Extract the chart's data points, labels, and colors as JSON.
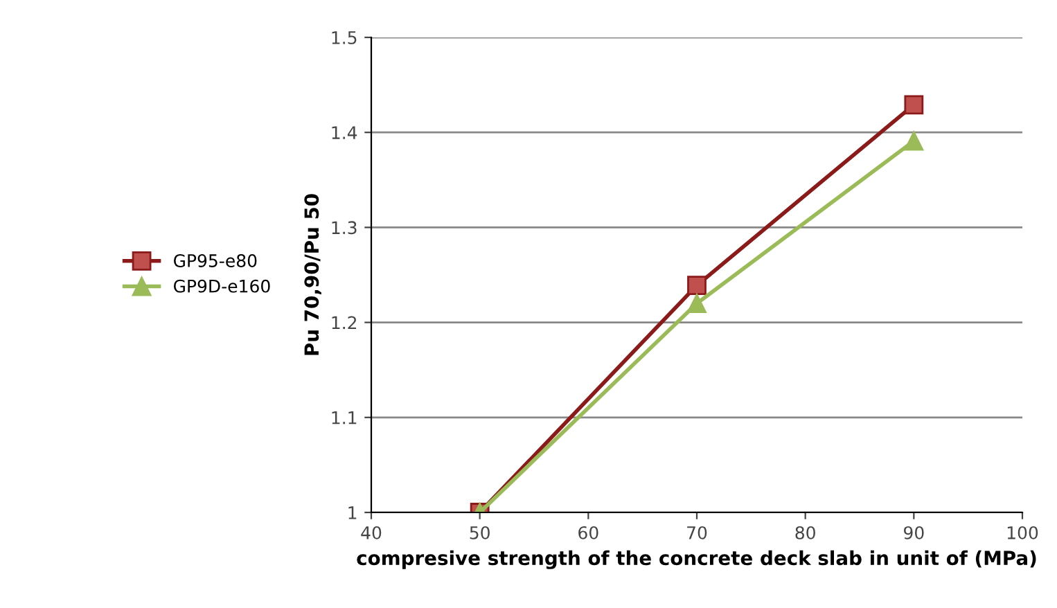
{
  "chart_data": {
    "type": "line",
    "xlabel": "compresive strength of the concrete deck slab in unit of (MPa)",
    "ylabel": "Pu 70,90/Pu 50",
    "x": [
      50,
      70,
      90
    ],
    "series": [
      {
        "name": "GP95-e80",
        "color": "#8b1a1a",
        "values": [
          1.0,
          1.239,
          1.429
        ],
        "marker": "square"
      },
      {
        "name": "GP9D-e160",
        "color": "#9bbb59",
        "values": [
          1.0,
          1.22,
          1.391
        ],
        "marker": "triangle"
      }
    ],
    "xlim": [
      40,
      100
    ],
    "xticks": [
      40,
      50,
      60,
      70,
      80,
      90,
      100
    ],
    "ylim": [
      1,
      1.5
    ],
    "yticks": [
      1,
      1.1,
      1.2,
      1.3,
      1.4,
      1.5
    ],
    "grid": "y",
    "legend": "left"
  }
}
